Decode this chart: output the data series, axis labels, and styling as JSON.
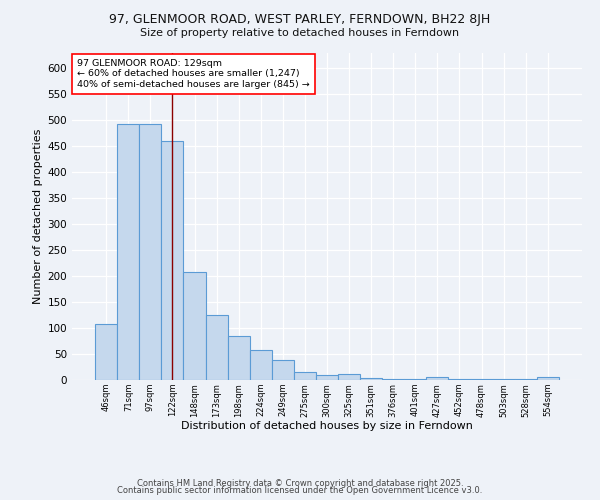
{
  "title1": "97, GLENMOOR ROAD, WEST PARLEY, FERNDOWN, BH22 8JH",
  "title2": "Size of property relative to detached houses in Ferndown",
  "xlabel": "Distribution of detached houses by size in Ferndown",
  "ylabel": "Number of detached properties",
  "categories": [
    "46sqm",
    "71sqm",
    "97sqm",
    "122sqm",
    "148sqm",
    "173sqm",
    "198sqm",
    "224sqm",
    "249sqm",
    "275sqm",
    "300sqm",
    "325sqm",
    "351sqm",
    "376sqm",
    "401sqm",
    "427sqm",
    "452sqm",
    "478sqm",
    "503sqm",
    "528sqm",
    "554sqm"
  ],
  "values": [
    108,
    493,
    493,
    460,
    207,
    125,
    84,
    57,
    38,
    15,
    9,
    12,
    3,
    1,
    1,
    6,
    1,
    1,
    1,
    1,
    6
  ],
  "bar_color": "#c5d8ed",
  "bar_edge_color": "#5b9bd5",
  "red_line_index": 3,
  "annotation_text": "97 GLENMOOR ROAD: 129sqm\n← 60% of detached houses are smaller (1,247)\n40% of semi-detached houses are larger (845) →",
  "annotation_box_color": "white",
  "annotation_box_edge": "red",
  "ylim": [
    0,
    630
  ],
  "yticks": [
    0,
    50,
    100,
    150,
    200,
    250,
    300,
    350,
    400,
    450,
    500,
    550,
    600
  ],
  "footer1": "Contains HM Land Registry data © Crown copyright and database right 2025.",
  "footer2": "Contains public sector information licensed under the Open Government Licence v3.0.",
  "bg_color": "#eef2f8",
  "plot_bg_color": "#eef2f8"
}
